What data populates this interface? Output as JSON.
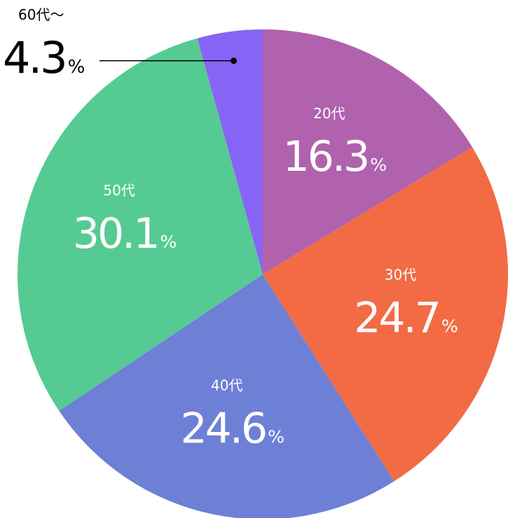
{
  "chart_data": {
    "type": "pie",
    "categories": [
      "20代",
      "30代",
      "40代",
      "50代",
      "60代～"
    ],
    "values": [
      16.3,
      24.7,
      24.6,
      30.1,
      4.3
    ],
    "colors": [
      "#b062ad",
      "#f26b45",
      "#6d80d6",
      "#55cb93",
      "#8764f5"
    ],
    "unit": "%"
  }
}
